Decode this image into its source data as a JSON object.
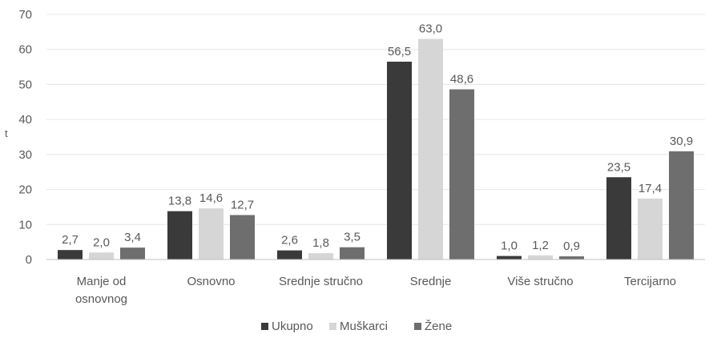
{
  "chart_data": {
    "type": "bar",
    "title": "",
    "xlabel": "",
    "ylabel": "t",
    "ylim": [
      0,
      70
    ],
    "yticks": [
      0,
      10,
      20,
      30,
      40,
      50,
      60,
      70
    ],
    "grid": true,
    "legend_position": "bottom",
    "categories": [
      [
        "Manje od",
        "osnovnog"
      ],
      [
        "Osnovno"
      ],
      [
        "Srednje stručno"
      ],
      [
        "Srednje"
      ],
      [
        "Više stručno"
      ],
      [
        "Tercijarno"
      ]
    ],
    "series": [
      {
        "name": "Ukupno",
        "color": "#3a3a3a",
        "values": [
          2.7,
          13.8,
          2.6,
          56.5,
          1.0,
          23.5
        ],
        "labels": [
          "2,7",
          "13,8",
          "2,6",
          "56,5",
          "1,0",
          "23,5"
        ]
      },
      {
        "name": "Muškarci",
        "color": "#d6d6d6",
        "values": [
          2.0,
          14.6,
          1.8,
          63.0,
          1.2,
          17.4
        ],
        "labels": [
          "2,0",
          "14,6",
          "1,8",
          "63,0",
          "1,2",
          "17,4"
        ]
      },
      {
        "name": "Žene",
        "color": "#6e6e6e",
        "values": [
          3.4,
          12.7,
          3.5,
          48.6,
          0.9,
          30.9
        ],
        "labels": [
          "3,4",
          "12,7",
          "3,5",
          "48,6",
          "0,9",
          "30,9"
        ]
      }
    ]
  }
}
